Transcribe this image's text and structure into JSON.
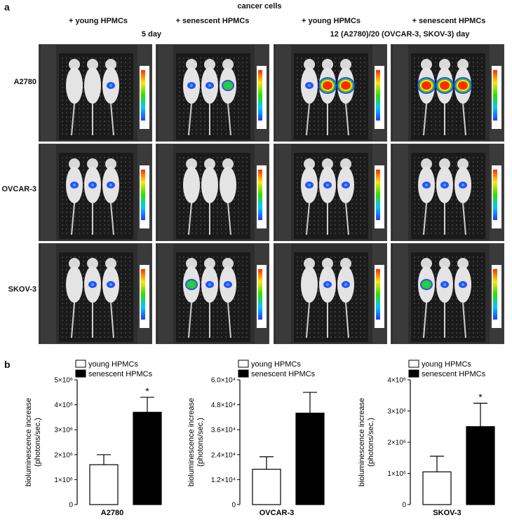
{
  "panel_a": {
    "letter": "a",
    "title": "cancer cells",
    "columns": [
      "+ young HPMCs",
      "+ senescent HPMCs",
      "+ young HPMCs",
      "+ senescent HPMCs"
    ],
    "time_labels": [
      "5 day",
      "12 (A2780)/20 (OVCAR-3, SKOV-3) day"
    ],
    "rows": [
      "A2780",
      "OVCAR-3",
      "SKOV-3"
    ]
  },
  "panel_b": {
    "letter": "b"
  },
  "colors": {
    "young": "#ffffff",
    "senescent": "#000000",
    "photo_bg": "#2b2b2b"
  },
  "chart_data": [
    {
      "type": "bar",
      "categories": [
        "young HPMCs",
        "senescent HPMCs"
      ],
      "values": [
        1600000,
        3700000
      ],
      "errors": [
        400000,
        600000
      ],
      "ylim": [
        0,
        5000000
      ],
      "yticks": [
        "0",
        "1×10⁶",
        "2×10⁶",
        "3×10⁶",
        "4×10⁶",
        "5×10⁶"
      ],
      "ylabel": "bioluminescence increase (photons/sec.)",
      "xlabel": "A2780",
      "legend": [
        "young HPMCs",
        "senescent HPMCs"
      ],
      "annotation": "*"
    },
    {
      "type": "bar",
      "categories": [
        "young HPMCs",
        "senescent HPMCs"
      ],
      "values": [
        17000,
        44000
      ],
      "errors": [
        6000,
        10000
      ],
      "ylim": [
        0,
        60000
      ],
      "yticks": [
        "0",
        "1.2×10⁴",
        "2.4×10⁴",
        "3.6×10⁴",
        "4.8×10⁴",
        "6.0×10⁴"
      ],
      "ylabel": "bioluminescence increase (photons/sec.)",
      "xlabel": "OVCAR-3",
      "legend": [
        "young HPMCs",
        "senescent HPMCs"
      ],
      "annotation": ""
    },
    {
      "type": "bar",
      "categories": [
        "young HPMCs",
        "senescent HPMCs"
      ],
      "values": [
        1050000,
        2500000
      ],
      "errors": [
        500000,
        750000
      ],
      "ylim": [
        0,
        4000000
      ],
      "yticks": [
        "0",
        "1×10⁶",
        "2×10⁶",
        "3×10⁶",
        "4×10⁶"
      ],
      "ylabel": "bioluminescence increase (photons/sec.)",
      "xlabel": "SKOV-3",
      "legend": [
        "young HPMCs",
        "senescent HPMCs"
      ],
      "annotation": "*"
    }
  ]
}
